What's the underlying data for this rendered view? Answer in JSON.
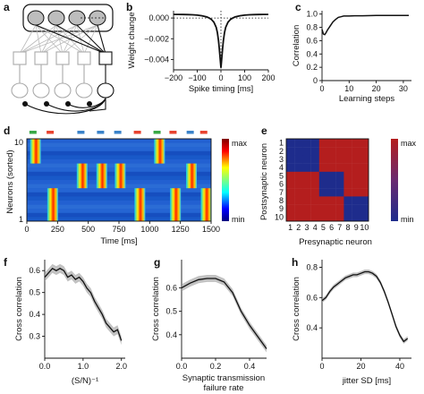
{
  "panels": {
    "a": {
      "label": "a"
    },
    "b": {
      "label": "b"
    },
    "c": {
      "label": "c"
    },
    "d": {
      "label": "d"
    },
    "e": {
      "label": "e"
    },
    "f": {
      "label": "f"
    },
    "g": {
      "label": "g"
    },
    "h": {
      "label": "h"
    }
  },
  "colors": {
    "neuron_fill": "#bdbdbd",
    "green_marker": "#3aa845",
    "red_marker": "#e8432f",
    "blue_marker": "#3b83c9",
    "heat_low": "#1e2c8c",
    "heat_high": "#b41e1e",
    "line": "#111111",
    "band": "#9a9a9a"
  },
  "chart_data": [
    {
      "id": "b",
      "type": "line",
      "xlabel": "Spike timing [ms]",
      "ylabel": "Weight change",
      "xlim": [
        -200,
        200
      ],
      "ylim": [
        -0.005,
        0.0007
      ],
      "xticks": [
        -200,
        -100,
        0,
        100,
        200
      ],
      "xtick_labels": [
        "−200",
        "−100",
        "0",
        "100",
        "200"
      ],
      "yticks": [
        0.0,
        -0.002,
        -0.004
      ],
      "ytick_labels": [
        "0.000",
        "−0.002",
        "−0.004"
      ],
      "x": [
        -200,
        -180,
        -160,
        -140,
        -120,
        -100,
        -80,
        -60,
        -50,
        -40,
        -30,
        -20,
        -15,
        -10,
        -7,
        -4,
        -2,
        0,
        2,
        4,
        7,
        10,
        15,
        20,
        30,
        40,
        50,
        60,
        80,
        100,
        120,
        140,
        160,
        180,
        200
      ],
      "y": [
        0.00035,
        0.00035,
        0.00034,
        0.00033,
        0.00031,
        0.00028,
        0.00022,
        0.0001,
        0.0,
        -0.00015,
        -0.0004,
        -0.0009,
        -0.0014,
        -0.0022,
        -0.0029,
        -0.0037,
        -0.0043,
        -0.0048,
        -0.0043,
        -0.0037,
        -0.0029,
        -0.0022,
        -0.0014,
        -0.0009,
        -0.0004,
        -0.00015,
        0.0,
        0.0001,
        0.00022,
        0.00028,
        0.00031,
        0.00033,
        0.00034,
        0.00035,
        0.00035
      ]
    },
    {
      "id": "c",
      "type": "line",
      "xlabel": "Learning steps",
      "ylabel": "Correlation",
      "xlim": [
        0,
        33
      ],
      "ylim": [
        0,
        1.05
      ],
      "xticks": [
        0,
        10,
        20,
        30
      ],
      "yticks": [
        0,
        0.2,
        0.4,
        0.6,
        0.8,
        1.0
      ],
      "ytick_labels": [
        "0",
        "0.2",
        "0.4",
        "0.6",
        "0.8",
        "1.0"
      ],
      "x": [
        0,
        0.5,
        1,
        1.5,
        2,
        3,
        4,
        5,
        6,
        7,
        8,
        10,
        12,
        15,
        20,
        25,
        30,
        32
      ],
      "y": [
        0.77,
        0.7,
        0.69,
        0.72,
        0.76,
        0.82,
        0.88,
        0.92,
        0.95,
        0.96,
        0.97,
        0.97,
        0.975,
        0.975,
        0.98,
        0.98,
        0.98,
        0.98
      ]
    },
    {
      "id": "d",
      "type": "heatmap",
      "xlabel": "Time [ms]",
      "ylabel": "Neurons (sorted)",
      "xlim": [
        0,
        1500
      ],
      "xticks": [
        0,
        250,
        500,
        750,
        1000,
        1250,
        1500
      ],
      "ytick_labels": [
        "10",
        "1"
      ],
      "colorbar_labels": [
        "max",
        "min"
      ],
      "pattern_markers": [
        {
          "t": 50,
          "color": "green"
        },
        {
          "t": 190,
          "color": "red"
        },
        {
          "t": 440,
          "color": "blue"
        },
        {
          "t": 600,
          "color": "blue"
        },
        {
          "t": 740,
          "color": "blue"
        },
        {
          "t": 900,
          "color": "red"
        },
        {
          "t": 1060,
          "color": "green"
        },
        {
          "t": 1190,
          "color": "red"
        },
        {
          "t": 1330,
          "color": "blue"
        },
        {
          "t": 1440,
          "color": "red"
        }
      ],
      "bursts": [
        {
          "t": 70,
          "rows": [
            8,
            10
          ]
        },
        {
          "t": 1080,
          "rows": [
            8,
            10
          ]
        },
        {
          "t": 450,
          "rows": [
            5,
            7
          ]
        },
        {
          "t": 610,
          "rows": [
            5,
            7
          ]
        },
        {
          "t": 760,
          "rows": [
            5,
            7
          ]
        },
        {
          "t": 1340,
          "rows": [
            5,
            7
          ]
        },
        {
          "t": 210,
          "rows": [
            1,
            4
          ]
        },
        {
          "t": 920,
          "rows": [
            1,
            4
          ]
        },
        {
          "t": 1210,
          "rows": [
            1,
            4
          ]
        },
        {
          "t": 1460,
          "rows": [
            1,
            4
          ]
        }
      ]
    },
    {
      "id": "e",
      "type": "heatmap",
      "xlabel": "Presynaptic neuron",
      "ylabel": "Postsynaptic neuron",
      "ticks": [
        "1",
        "2",
        "3",
        "4",
        "5",
        "6",
        "7",
        "8",
        "9",
        "10"
      ],
      "colorbar_labels": [
        "max",
        "min"
      ],
      "blocks": [
        [
          1,
          4
        ],
        [
          5,
          7
        ],
        [
          8,
          10
        ]
      ]
    },
    {
      "id": "f",
      "type": "line",
      "xlabel": "(S/N)⁻¹",
      "ylabel": "Cross correlation",
      "xlim": [
        0,
        2.1
      ],
      "ylim": [
        0.2,
        0.65
      ],
      "xticks": [
        0,
        1.0,
        2.0
      ],
      "xtick_labels": [
        "0.0",
        "1.0",
        "2.0"
      ],
      "yticks": [
        0.3,
        0.4,
        0.5,
        0.6
      ],
      "x": [
        0,
        0.1,
        0.2,
        0.3,
        0.4,
        0.5,
        0.6,
        0.7,
        0.8,
        0.9,
        1.0,
        1.1,
        1.2,
        1.3,
        1.4,
        1.5,
        1.6,
        1.7,
        1.8,
        1.9,
        2.0
      ],
      "y": [
        0.57,
        0.59,
        0.61,
        0.6,
        0.61,
        0.6,
        0.57,
        0.58,
        0.56,
        0.57,
        0.55,
        0.52,
        0.5,
        0.46,
        0.43,
        0.4,
        0.36,
        0.34,
        0.32,
        0.33,
        0.28
      ],
      "band": 0.02
    },
    {
      "id": "g",
      "type": "line",
      "xlabel": "Synaptic transmission failure rate",
      "ylabel": "Cross correlation",
      "xlim": [
        0,
        0.5
      ],
      "ylim": [
        0.3,
        0.72
      ],
      "xticks": [
        0.0,
        0.2,
        0.4
      ],
      "xtick_labels": [
        "0.0",
        "0.2",
        "0.4"
      ],
      "yticks": [
        0.4,
        0.5,
        0.6
      ],
      "x": [
        0,
        0.05,
        0.1,
        0.15,
        0.2,
        0.25,
        0.3,
        0.35,
        0.4,
        0.45,
        0.5
      ],
      "y": [
        0.6,
        0.62,
        0.635,
        0.64,
        0.64,
        0.625,
        0.58,
        0.5,
        0.44,
        0.39,
        0.34
      ],
      "band": 0.015
    },
    {
      "id": "h",
      "type": "line",
      "xlabel": "jitter SD [ms]",
      "ylabel": "Cross correlation",
      "xlim": [
        0,
        46
      ],
      "ylim": [
        0.2,
        0.85
      ],
      "xticks": [
        0,
        20,
        40
      ],
      "yticks": [
        0.4,
        0.6,
        0.8
      ],
      "x": [
        0,
        2,
        4,
        6,
        8,
        10,
        12,
        14,
        16,
        18,
        20,
        22,
        24,
        26,
        28,
        30,
        32,
        34,
        36,
        38,
        40,
        42,
        44
      ],
      "y": [
        0.58,
        0.6,
        0.64,
        0.67,
        0.69,
        0.71,
        0.73,
        0.74,
        0.75,
        0.75,
        0.76,
        0.77,
        0.77,
        0.76,
        0.74,
        0.7,
        0.64,
        0.57,
        0.49,
        0.41,
        0.35,
        0.31,
        0.33
      ],
      "band": 0.015
    }
  ]
}
